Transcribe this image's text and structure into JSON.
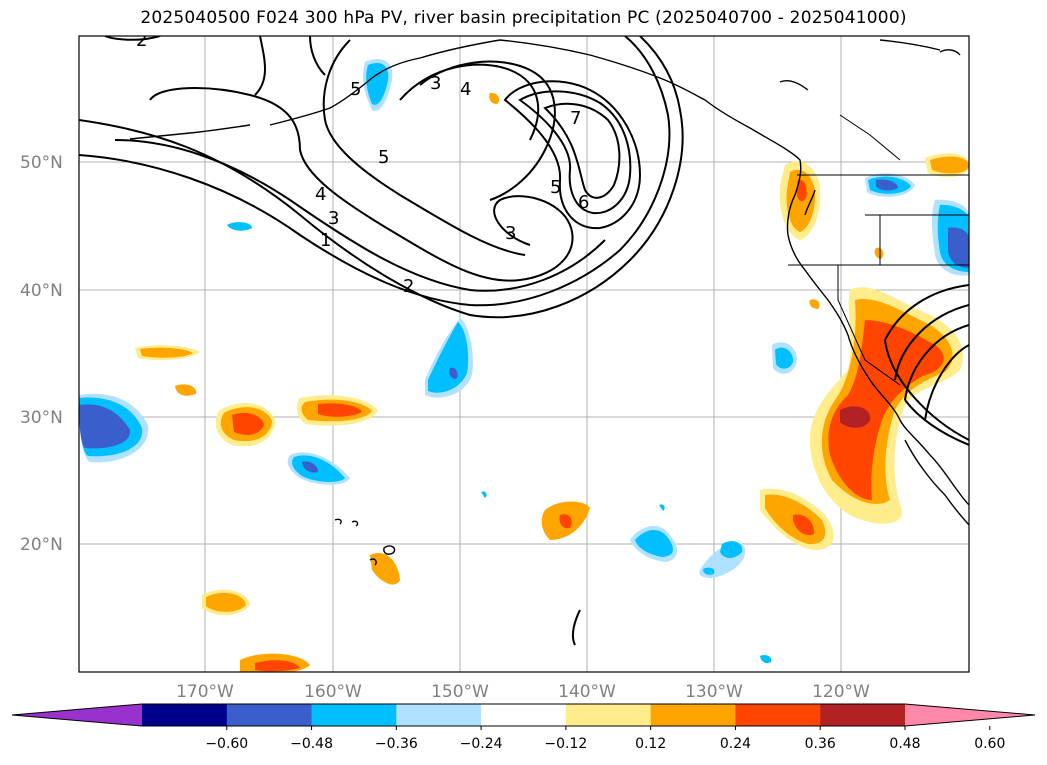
{
  "title": "2025040500 F024 300 hPa PV, river basin precipitation PC (2025040700 - 2025041000)",
  "lat_labels": [
    "50°N",
    "40°N",
    "30°N",
    "20°N"
  ],
  "lon_labels": [
    "170°W",
    "160°W",
    "150°W",
    "140°W",
    "130°W",
    "120°W"
  ],
  "colorbar": {
    "colors": [
      "#9932cc",
      "#00008b",
      "#3a5fcd",
      "#00bfff",
      "#b0e2ff",
      "#ffffff",
      "#ffec8b",
      "#ffa500",
      "#ff4500",
      "#b22222",
      "#ff88aa"
    ],
    "tick_labels": [
      "−0.60",
      "−0.48",
      "−0.36",
      "−0.24",
      "−0.12",
      "0.12",
      "0.24",
      "0.36",
      "0.48",
      "0.60"
    ]
  },
  "contour_labels": [
    "2",
    "3",
    "4",
    "5",
    "7",
    "5",
    "6",
    "3",
    "4",
    "3",
    "1",
    "2",
    "5"
  ]
}
